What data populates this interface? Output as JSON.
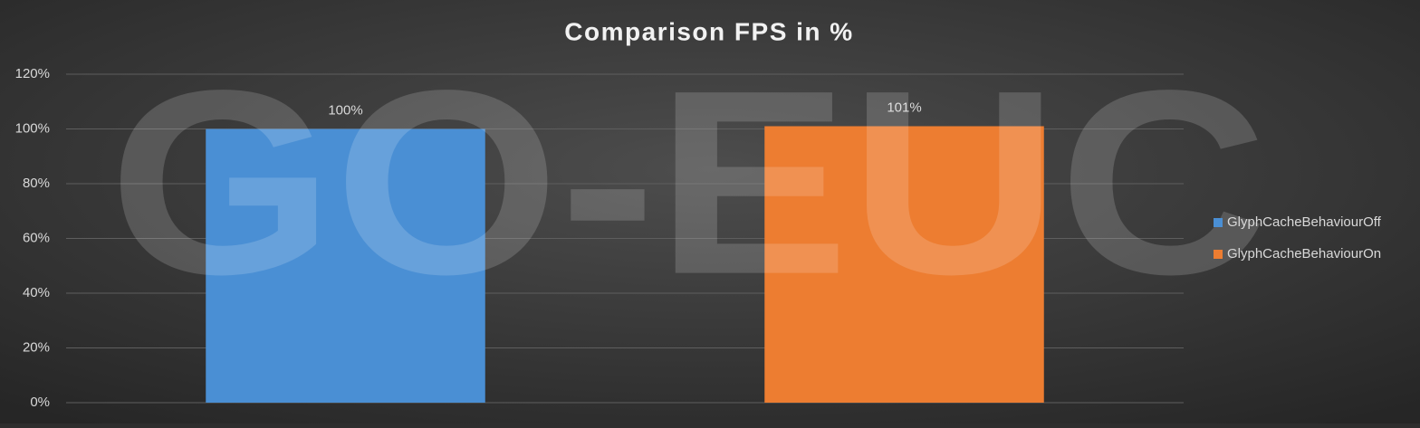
{
  "chart_data": {
    "type": "bar",
    "title": "Comparison FPS in %",
    "watermark": "GO-EUC",
    "categories": [
      null,
      null
    ],
    "series": [
      {
        "name": "GlyphCacheBehaviourOff",
        "color": "#4a8fd4",
        "values": [
          100,
          null
        ],
        "value_labels": [
          "100%",
          null
        ]
      },
      {
        "name": "GlyphCacheBehaviourOn",
        "color": "#ed7d31",
        "values": [
          null,
          101
        ],
        "value_labels": [
          null,
          "101%"
        ]
      }
    ],
    "ylim": [
      0,
      120
    ],
    "yticks": [
      {
        "value": 0,
        "label": "0%"
      },
      {
        "value": 20,
        "label": "20%"
      },
      {
        "value": 40,
        "label": "40%"
      },
      {
        "value": 60,
        "label": "60%"
      },
      {
        "value": 80,
        "label": "80%"
      },
      {
        "value": 100,
        "label": "100%"
      },
      {
        "value": 120,
        "label": "120%"
      }
    ],
    "grid": true,
    "legend": "right"
  }
}
